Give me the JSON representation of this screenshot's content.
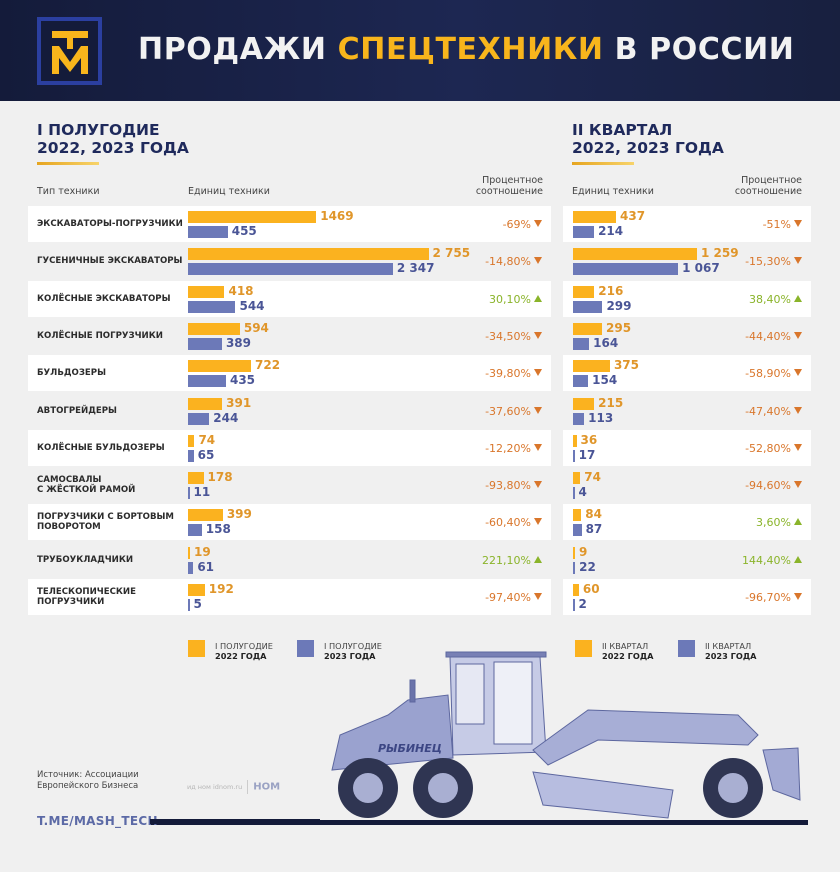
{
  "header": {
    "logo": "ТМ",
    "title_part1": "ПРОДАЖИ ",
    "title_accent": "СПЕЦТЕХНИКИ",
    "title_part2": " В РОССИИ"
  },
  "left_section": {
    "title_line1": "I ПОЛУГОДИЕ",
    "title_line2": "2022, 2023 ГОДА",
    "col_type": "Тип техники",
    "col_units": "Единиц техники",
    "col_pct_line1": "Процентное",
    "col_pct_line2": "соотношение"
  },
  "right_section": {
    "title_line1": "II КВАРТАЛ",
    "title_line2": "2022, 2023 ГОДА",
    "col_units": "Единиц техники",
    "col_pct_line1": "Процентное",
    "col_pct_line2": "соотношение"
  },
  "rows": [
    {
      "label": "ЭКСКАВАТОРЫ-ПОГРУЗЧИКИ",
      "h1_2022": "1469",
      "h1_2023": "455",
      "h1_pct": "-69%",
      "h1_dir": "down",
      "q2_2022": "437",
      "q2_2023": "214",
      "q2_pct": "-51%",
      "q2_dir": "down"
    },
    {
      "label": "ГУСЕНИЧНЫЕ ЭКСКАВАТОРЫ",
      "h1_2022": "2 755",
      "h1_2023": "2 347",
      "h1_pct": "-14,80%",
      "h1_dir": "down",
      "q2_2022": "1 259",
      "q2_2023": "1 067",
      "q2_pct": "-15,30%",
      "q2_dir": "down"
    },
    {
      "label": "КОЛЁСНЫЕ ЭКСКАВАТОРЫ",
      "h1_2022": "418",
      "h1_2023": "544",
      "h1_pct": "30,10%",
      "h1_dir": "up",
      "q2_2022": "216",
      "q2_2023": "299",
      "q2_pct": "38,40%",
      "q2_dir": "up"
    },
    {
      "label": "КОЛЁСНЫЕ ПОГРУЗЧИКИ",
      "h1_2022": "594",
      "h1_2023": "389",
      "h1_pct": "-34,50%",
      "h1_dir": "down",
      "q2_2022": "295",
      "q2_2023": "164",
      "q2_pct": "-44,40%",
      "q2_dir": "down"
    },
    {
      "label": "БУЛЬДОЗЕРЫ",
      "h1_2022": "722",
      "h1_2023": "435",
      "h1_pct": "-39,80%",
      "h1_dir": "down",
      "q2_2022": "375",
      "q2_2023": "154",
      "q2_pct": "-58,90%",
      "q2_dir": "down"
    },
    {
      "label": "АВТОГРЕЙДЕРЫ",
      "h1_2022": "391",
      "h1_2023": "244",
      "h1_pct": "-37,60%",
      "h1_dir": "down",
      "q2_2022": "215",
      "q2_2023": "113",
      "q2_pct": "-47,40%",
      "q2_dir": "down"
    },
    {
      "label": "КОЛЁСНЫЕ БУЛЬДОЗЕРЫ",
      "h1_2022": "74",
      "h1_2023": "65",
      "h1_pct": "-12,20%",
      "h1_dir": "down",
      "q2_2022": "36",
      "q2_2023": "17",
      "q2_pct": "-52,80%",
      "q2_dir": "down"
    },
    {
      "label": "САМОСВАЛЫ С ЖЁСТКОЙ РАМОЙ",
      "label_l1": "САМОСВАЛЫ",
      "label_l2": "С ЖЁСТКОЙ РАМОЙ",
      "h1_2022": "178",
      "h1_2023": "11",
      "h1_pct": "-93,80%",
      "h1_dir": "down",
      "q2_2022": "74",
      "q2_2023": "4",
      "q2_pct": "-94,60%",
      "q2_dir": "down"
    },
    {
      "label": "ПОГРУЗЧИКИ С БОРТОВЫМ ПОВОРОТОМ",
      "label_l1": "ПОГРУЗЧИКИ С БОРТОВЫМ",
      "label_l2": "ПОВОРОТОМ",
      "h1_2022": "399",
      "h1_2023": "158",
      "h1_pct": "-60,40%",
      "h1_dir": "down",
      "q2_2022": "84",
      "q2_2023": "87",
      "q2_pct": "3,60%",
      "q2_dir": "up"
    },
    {
      "label": "ТРУБОУКЛАДЧИКИ",
      "h1_2022": "19",
      "h1_2023": "61",
      "h1_pct": "221,10%",
      "h1_dir": "up",
      "q2_2022": "9",
      "q2_2023": "22",
      "q2_pct": "144,40%",
      "q2_dir": "up"
    },
    {
      "label": "ТЕЛЕСКОПИЧЕСКИЕ ПОГРУЗЧИКИ",
      "label_l1": "ТЕЛЕСКОПИЧЕСКИЕ",
      "label_l2": "ПОГРУЗЧИКИ",
      "h1_2022": "192",
      "h1_2023": "5",
      "h1_pct": "-97,40%",
      "h1_dir": "down",
      "q2_2022": "60",
      "q2_2023": "2",
      "q2_pct": "-96,70%",
      "q2_dir": "down"
    }
  ],
  "legend": [
    {
      "line1": "I ПОЛУГОДИЕ",
      "line2": "2022 ГОДА",
      "color": "#fbb21f"
    },
    {
      "line1": "I ПОЛУГОДИЕ",
      "line2": "2023 ГОДА",
      "color": "#6c79b8"
    },
    {
      "line1": "II КВАРТАЛ",
      "line2": "2022 ГОДА",
      "color": "#fbb21f"
    },
    {
      "line1": "II КВАРТАЛ",
      "line2": "2023 ГОДА",
      "color": "#6c79b8"
    }
  ],
  "footer": {
    "source_line1": "Источник: Ассоциации",
    "source_line2": "Европейского Бизнеса",
    "partner": "ид ном idnom.ru",
    "partner_logo": "НОМ",
    "channel": "T.ME/MASH_TECH"
  },
  "colors": {
    "header_bg": "#141b3a",
    "accent_yellow": "#f8b51c",
    "bar_2022": "#fbb21f",
    "bar_2023": "#6c79b8",
    "pct_down": "#d9762b",
    "pct_up": "#8ab42a",
    "title_navy": "#1f2a5c"
  },
  "chart_data": [
    {
      "type": "bar",
      "orientation": "horizontal",
      "title": "I ПОЛУГОДИЕ 2022, 2023 ГОДА",
      "xlabel": "Единиц техники",
      "ylabel": "Тип техники",
      "categories": [
        "ЭКСКАВАТОРЫ-ПОГРУЗЧИКИ",
        "ГУСЕНИЧНЫЕ ЭКСКАВАТОРЫ",
        "КОЛЁСНЫЕ ЭКСКАВАТОРЫ",
        "КОЛЁСНЫЕ ПОГРУЗЧИКИ",
        "БУЛЬДОЗЕРЫ",
        "АВТОГРЕЙДЕРЫ",
        "КОЛЁСНЫЕ БУЛЬДОЗЕРЫ",
        "САМОСВАЛЫ С ЖЁСТКОЙ РАМОЙ",
        "ПОГРУЗЧИКИ С БОРТОВЫМ ПОВОРОТОМ",
        "ТРУБОУКЛАДЧИКИ",
        "ТЕЛЕСКОПИЧЕСКИЕ ПОГРУЗЧИКИ"
      ],
      "series": [
        {
          "name": "I ПОЛУГОДИЕ 2022 ГОДА",
          "color": "#fbb21f",
          "values": [
            1469,
            2755,
            418,
            594,
            722,
            391,
            74,
            178,
            399,
            19,
            192
          ]
        },
        {
          "name": "I ПОЛУГОДИЕ 2023 ГОДА",
          "color": "#6c79b8",
          "values": [
            455,
            2347,
            544,
            389,
            435,
            244,
            65,
            11,
            158,
            61,
            5
          ]
        }
      ],
      "percent_change": [
        "-69%",
        "-14,80%",
        "30,10%",
        "-34,50%",
        "-39,80%",
        "-37,60%",
        "-12,20%",
        "-93,80%",
        "-60,40%",
        "221,10%",
        "-97,40%"
      ],
      "percent_change_label": "Процентное соотношение",
      "legend_position": "bottom",
      "grid": false
    },
    {
      "type": "bar",
      "orientation": "horizontal",
      "title": "II КВАРТАЛ 2022, 2023 ГОДА",
      "xlabel": "Единиц техники",
      "categories": [
        "ЭКСКАВАТОРЫ-ПОГРУЗЧИКИ",
        "ГУСЕНИЧНЫЕ ЭКСКАВАТОРЫ",
        "КОЛЁСНЫЕ ЭКСКАВАТОРЫ",
        "КОЛЁСНЫЕ ПОГРУЗЧИКИ",
        "БУЛЬДОЗЕРЫ",
        "АВТОГРЕЙДЕРЫ",
        "КОЛЁСНЫЕ БУЛЬДОЗЕРЫ",
        "САМОСВАЛЫ С ЖЁСТКОЙ РАМОЙ",
        "ПОГРУЗЧИКИ С БОРТОВЫМ ПОВОРОТОМ",
        "ТРУБОУКЛАДЧИКИ",
        "ТЕЛЕСКОПИЧЕСКИЕ ПОГРУЗЧИКИ"
      ],
      "series": [
        {
          "name": "II КВАРТАЛ 2022 ГОДА",
          "color": "#fbb21f",
          "values": [
            437,
            1259,
            216,
            295,
            375,
            215,
            36,
            74,
            84,
            9,
            60
          ]
        },
        {
          "name": "II КВАРТАЛ 2023 ГОДА",
          "color": "#6c79b8",
          "values": [
            214,
            1067,
            299,
            164,
            154,
            113,
            17,
            4,
            87,
            22,
            2
          ]
        }
      ],
      "percent_change": [
        "-51%",
        "-15,30%",
        "38,40%",
        "-44,40%",
        "-58,90%",
        "-47,40%",
        "-52,80%",
        "-94,60%",
        "3,60%",
        "144,40%",
        "-96,70%"
      ],
      "percent_change_label": "Процентное соотношение",
      "legend_position": "bottom",
      "grid": false
    }
  ]
}
